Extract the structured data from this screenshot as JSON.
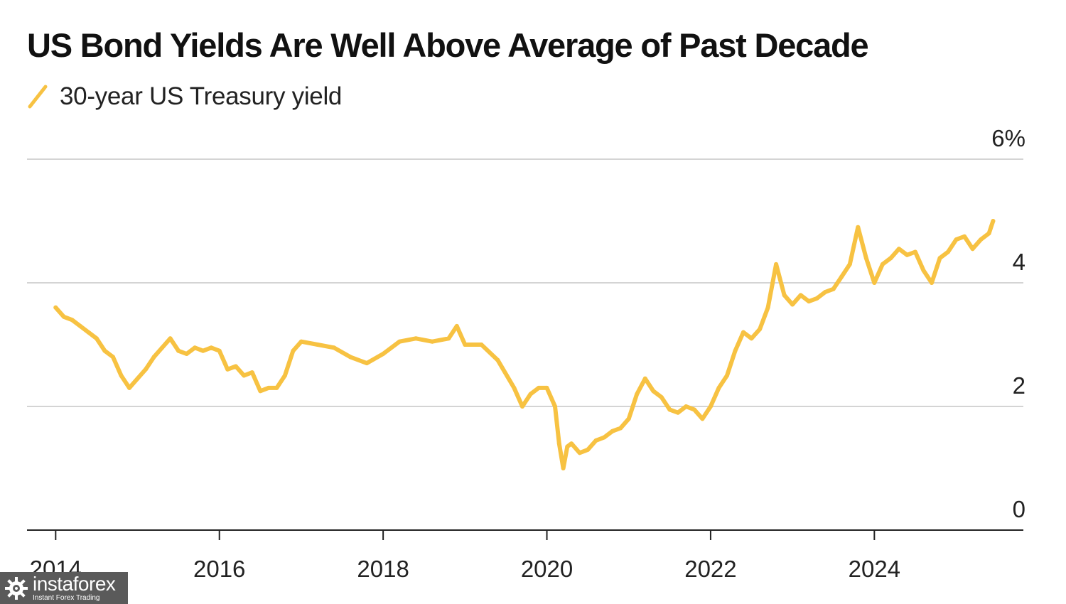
{
  "chart_data": {
    "type": "line",
    "title": "US Bond Yields Are Well Above Average of Past Decade",
    "series": [
      {
        "name": "30-year US Treasury yield",
        "color": "#f7c242",
        "x": [
          2014.0,
          2014.1,
          2014.2,
          2014.3,
          2014.4,
          2014.5,
          2014.6,
          2014.7,
          2014.8,
          2014.9,
          2015.0,
          2015.1,
          2015.2,
          2015.3,
          2015.4,
          2015.5,
          2015.6,
          2015.7,
          2015.8,
          2015.9,
          2016.0,
          2016.1,
          2016.2,
          2016.3,
          2016.4,
          2016.5,
          2016.6,
          2016.7,
          2016.8,
          2016.9,
          2017.0,
          2017.2,
          2017.4,
          2017.6,
          2017.8,
          2018.0,
          2018.2,
          2018.4,
          2018.6,
          2018.8,
          2018.9,
          2019.0,
          2019.2,
          2019.4,
          2019.6,
          2019.7,
          2019.8,
          2019.9,
          2020.0,
          2020.1,
          2020.15,
          2020.2,
          2020.25,
          2020.3,
          2020.4,
          2020.5,
          2020.6,
          2020.7,
          2020.8,
          2020.9,
          2021.0,
          2021.1,
          2021.2,
          2021.3,
          2021.4,
          2021.5,
          2021.6,
          2021.7,
          2021.8,
          2021.9,
          2022.0,
          2022.1,
          2022.2,
          2022.3,
          2022.4,
          2022.5,
          2022.6,
          2022.7,
          2022.8,
          2022.9,
          2023.0,
          2023.1,
          2023.2,
          2023.3,
          2023.4,
          2023.5,
          2023.6,
          2023.7,
          2023.8,
          2023.9,
          2024.0,
          2024.1,
          2024.2,
          2024.3,
          2024.4,
          2024.5,
          2024.6,
          2024.7,
          2024.8,
          2024.9,
          2025.0,
          2025.1,
          2025.2,
          2025.3,
          2025.4,
          2025.45
        ],
        "values": [
          3.6,
          3.45,
          3.4,
          3.3,
          3.2,
          3.1,
          2.9,
          2.8,
          2.5,
          2.3,
          2.45,
          2.6,
          2.8,
          2.95,
          3.1,
          2.9,
          2.85,
          2.95,
          2.9,
          2.95,
          2.9,
          2.6,
          2.65,
          2.5,
          2.55,
          2.25,
          2.3,
          2.3,
          2.5,
          2.9,
          3.05,
          3.0,
          2.95,
          2.8,
          2.7,
          2.85,
          3.05,
          3.1,
          3.05,
          3.1,
          3.3,
          3.0,
          3.0,
          2.75,
          2.3,
          2.0,
          2.2,
          2.3,
          2.3,
          2.0,
          1.4,
          1.0,
          1.35,
          1.4,
          1.25,
          1.3,
          1.45,
          1.5,
          1.6,
          1.65,
          1.8,
          2.2,
          2.45,
          2.25,
          2.15,
          1.95,
          1.9,
          2.0,
          1.95,
          1.8,
          2.0,
          2.3,
          2.5,
          2.9,
          3.2,
          3.1,
          3.25,
          3.6,
          4.3,
          3.8,
          3.65,
          3.8,
          3.7,
          3.75,
          3.85,
          3.9,
          4.1,
          4.3,
          4.9,
          4.4,
          4.0,
          4.3,
          4.4,
          4.55,
          4.45,
          4.5,
          4.2,
          4.0,
          4.4,
          4.5,
          4.7,
          4.75,
          4.55,
          4.7,
          4.8,
          5.0
        ]
      }
    ],
    "x_ticks": [
      2014,
      2016,
      2018,
      2020,
      2022,
      2024
    ],
    "x_tick_labels": [
      "2014",
      "2016",
      "2018",
      "2020",
      "2022",
      "2024"
    ],
    "y_ticks": [
      0,
      2,
      4,
      6
    ],
    "y_tick_labels": [
      "0",
      "2",
      "4",
      "6%"
    ],
    "xlim": [
      2013.65,
      2025.82
    ],
    "ylim": [
      0,
      6
    ],
    "grid": true,
    "legend_position": "top-left"
  },
  "watermark": {
    "name": "instaforex",
    "tagline": "Instant Forex Trading"
  }
}
